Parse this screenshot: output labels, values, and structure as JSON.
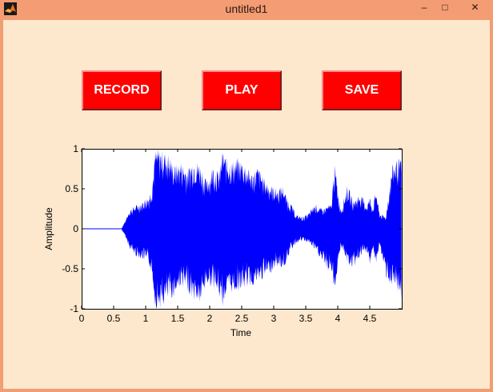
{
  "window": {
    "title": "untitled1",
    "min_glyph": "–",
    "max_glyph": "□",
    "close_glyph": "✕"
  },
  "buttons": {
    "record": "RECORD",
    "play": "PLAY",
    "save": "SAVE"
  },
  "colors": {
    "button": "#ff0000",
    "background": "#fde8cd",
    "titlebar": "#f49c73",
    "waveform": "#0000ff"
  },
  "chart_data": {
    "type": "line",
    "title": "",
    "xlabel": "Time",
    "ylabel": "Amplitude",
    "xlim": [
      0,
      5
    ],
    "ylim": [
      -1,
      1
    ],
    "xticks": [
      0,
      0.5,
      1,
      1.5,
      2,
      2.5,
      3,
      3.5,
      4,
      4.5
    ],
    "xtick_labels": [
      "0",
      "0.5",
      "1",
      "1.5",
      "2",
      "2.5",
      "3",
      "3.5",
      "4",
      "4.5"
    ],
    "yticks": [
      1,
      0.5,
      0,
      -0.5,
      -1
    ],
    "ytick_labels": [
      "1",
      "0.5",
      "0",
      "-0.5",
      "-1"
    ],
    "series": [
      {
        "color": "#0000ff",
        "envelope": {
          "t": [
            0,
            0.62,
            0.68,
            0.75,
            0.85,
            0.95,
            1.05,
            1.1,
            1.15,
            1.25,
            1.35,
            1.45,
            1.55,
            1.65,
            1.75,
            1.85,
            1.95,
            2.05,
            2.15,
            2.2,
            2.25,
            2.35,
            2.45,
            2.55,
            2.65,
            2.75,
            2.85,
            2.95,
            3.05,
            3.15,
            3.2,
            3.25,
            3.35,
            3.45,
            3.55,
            3.65,
            3.75,
            3.85,
            3.9,
            3.95,
            4.0,
            4.05,
            4.15,
            4.25,
            4.35,
            4.45,
            4.5,
            4.55,
            4.6,
            4.65,
            4.75,
            4.85,
            4.95,
            5.0
          ],
          "upper": [
            0,
            0,
            0.1,
            0.25,
            0.3,
            0.35,
            0.42,
            0.55,
            1.0,
            1.0,
            0.95,
            0.8,
            0.85,
            0.75,
            0.88,
            0.82,
            0.6,
            0.8,
            0.7,
            1.0,
            0.9,
            0.85,
            0.9,
            0.82,
            0.7,
            0.78,
            0.65,
            0.55,
            0.5,
            0.55,
            0.4,
            0.35,
            0.18,
            0.15,
            0.2,
            0.32,
            0.25,
            0.3,
            0.3,
            0.85,
            0.5,
            0.25,
            0.55,
            0.35,
            0.45,
            0.3,
            0.4,
            0.28,
            0.5,
            0.2,
            0.15,
            0.8,
            0.9,
            0.85
          ],
          "lower": [
            0,
            0,
            -0.1,
            -0.25,
            -0.35,
            -0.38,
            -0.45,
            -0.6,
            -1.0,
            -1.0,
            -0.9,
            -0.85,
            -0.7,
            -0.8,
            -0.9,
            -0.95,
            -0.7,
            -0.75,
            -0.85,
            -1.0,
            -0.85,
            -0.8,
            -0.78,
            -0.75,
            -0.72,
            -0.68,
            -0.62,
            -0.55,
            -0.48,
            -0.5,
            -0.42,
            -0.3,
            -0.18,
            -0.15,
            -0.18,
            -0.28,
            -0.4,
            -0.55,
            -0.5,
            -0.85,
            -0.45,
            -0.22,
            -0.45,
            -0.5,
            -0.35,
            -0.3,
            -0.45,
            -0.25,
            -0.5,
            -0.2,
            -0.6,
            -0.75,
            -0.85,
            -0.9
          ]
        }
      }
    ]
  }
}
